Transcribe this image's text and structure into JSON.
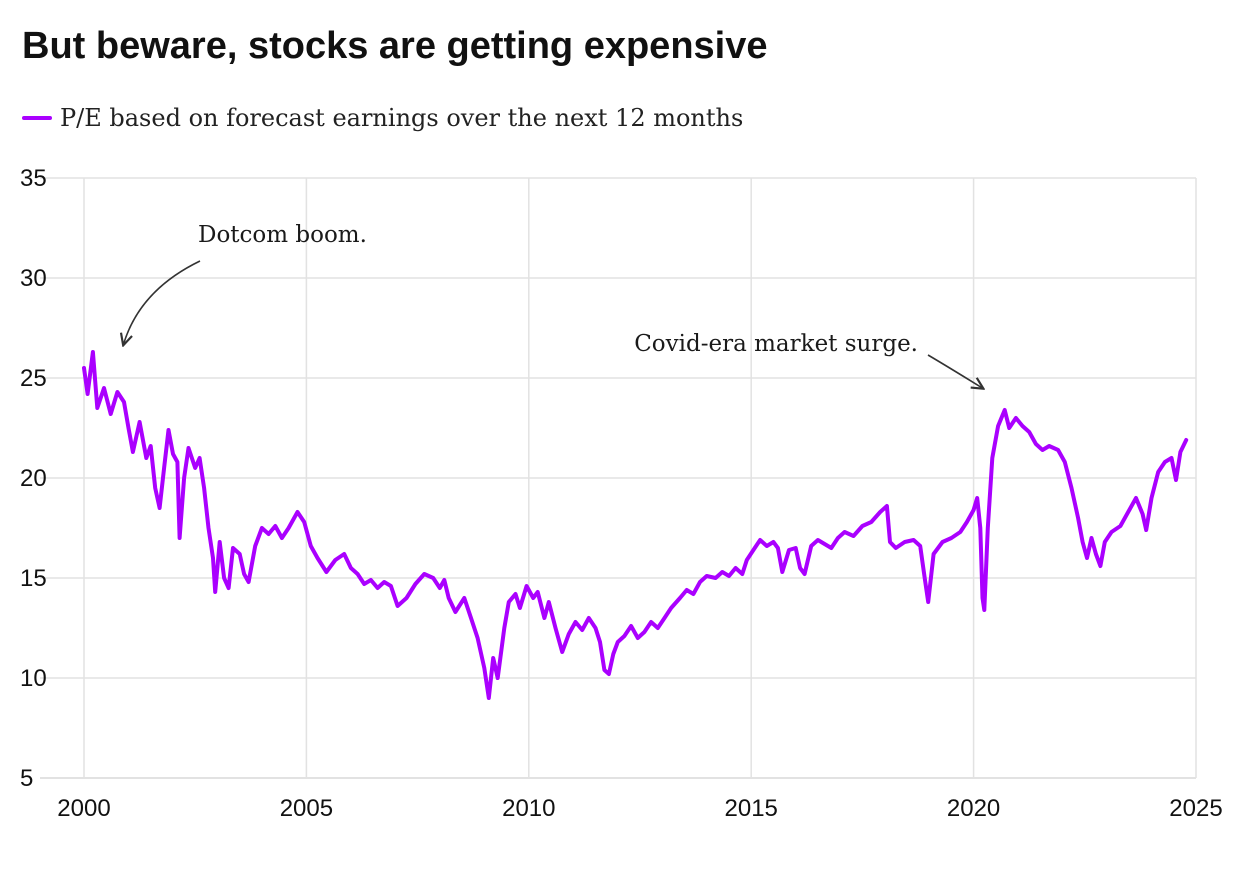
{
  "title": "But beware, stocks are getting expensive",
  "colors": {
    "series": "#aa00ff",
    "grid": "#e2e2e2",
    "annotation": "#333333",
    "text": "#111111"
  },
  "chart_data": {
    "type": "line",
    "title": "But beware, stocks are getting expensive",
    "xlabel": "",
    "ylabel": "",
    "xlim": [
      2000,
      2025
    ],
    "ylim": [
      5,
      35
    ],
    "x_ticks": [
      2000,
      2005,
      2010,
      2015,
      2020,
      2025
    ],
    "y_ticks": [
      5,
      10,
      15,
      20,
      25,
      30,
      35
    ],
    "grid": "horizontal and vertical",
    "legend": "top-left",
    "series": [
      {
        "name": "P/E based on forecast earnings over the next 12 months",
        "color": "#aa00ff",
        "points": [
          [
            2000.0,
            25.5
          ],
          [
            2000.08,
            24.2
          ],
          [
            2000.2,
            26.3
          ],
          [
            2000.3,
            23.5
          ],
          [
            2000.45,
            24.5
          ],
          [
            2000.6,
            23.2
          ],
          [
            2000.75,
            24.3
          ],
          [
            2000.9,
            23.8
          ],
          [
            2001.0,
            22.5
          ],
          [
            2001.1,
            21.3
          ],
          [
            2001.25,
            22.8
          ],
          [
            2001.4,
            21.0
          ],
          [
            2001.5,
            21.6
          ],
          [
            2001.6,
            19.5
          ],
          [
            2001.7,
            18.5
          ],
          [
            2001.8,
            20.5
          ],
          [
            2001.9,
            22.4
          ],
          [
            2002.0,
            21.2
          ],
          [
            2002.1,
            20.8
          ],
          [
            2002.15,
            17.0
          ],
          [
            2002.25,
            20.0
          ],
          [
            2002.35,
            21.5
          ],
          [
            2002.5,
            20.5
          ],
          [
            2002.6,
            21.0
          ],
          [
            2002.7,
            19.5
          ],
          [
            2002.8,
            17.5
          ],
          [
            2002.9,
            16.0
          ],
          [
            2002.95,
            14.3
          ],
          [
            2003.05,
            16.8
          ],
          [
            2003.15,
            15.0
          ],
          [
            2003.25,
            14.5
          ],
          [
            2003.35,
            16.5
          ],
          [
            2003.5,
            16.2
          ],
          [
            2003.6,
            15.2
          ],
          [
            2003.7,
            14.8
          ],
          [
            2003.85,
            16.6
          ],
          [
            2004.0,
            17.5
          ],
          [
            2004.15,
            17.2
          ],
          [
            2004.3,
            17.6
          ],
          [
            2004.45,
            17.0
          ],
          [
            2004.6,
            17.5
          ],
          [
            2004.8,
            18.3
          ],
          [
            2004.95,
            17.8
          ],
          [
            2005.1,
            16.6
          ],
          [
            2005.25,
            16.0
          ],
          [
            2005.45,
            15.3
          ],
          [
            2005.65,
            15.9
          ],
          [
            2005.85,
            16.2
          ],
          [
            2006.0,
            15.5
          ],
          [
            2006.15,
            15.2
          ],
          [
            2006.3,
            14.7
          ],
          [
            2006.45,
            14.9
          ],
          [
            2006.6,
            14.5
          ],
          [
            2006.75,
            14.8
          ],
          [
            2006.9,
            14.6
          ],
          [
            2007.05,
            13.6
          ],
          [
            2007.25,
            14.0
          ],
          [
            2007.45,
            14.7
          ],
          [
            2007.65,
            15.2
          ],
          [
            2007.85,
            15.0
          ],
          [
            2008.0,
            14.5
          ],
          [
            2008.1,
            14.9
          ],
          [
            2008.2,
            14.0
          ],
          [
            2008.35,
            13.3
          ],
          [
            2008.55,
            14.0
          ],
          [
            2008.7,
            13.0
          ],
          [
            2008.85,
            12.0
          ],
          [
            2009.0,
            10.5
          ],
          [
            2009.1,
            9.0
          ],
          [
            2009.2,
            11.0
          ],
          [
            2009.3,
            10.0
          ],
          [
            2009.45,
            12.5
          ],
          [
            2009.55,
            13.8
          ],
          [
            2009.7,
            14.2
          ],
          [
            2009.8,
            13.5
          ],
          [
            2009.95,
            14.6
          ],
          [
            2010.1,
            14.0
          ],
          [
            2010.2,
            14.3
          ],
          [
            2010.35,
            13.0
          ],
          [
            2010.45,
            13.8
          ],
          [
            2010.6,
            12.5
          ],
          [
            2010.75,
            11.3
          ],
          [
            2010.9,
            12.2
          ],
          [
            2011.05,
            12.8
          ],
          [
            2011.2,
            12.4
          ],
          [
            2011.35,
            13.0
          ],
          [
            2011.5,
            12.5
          ],
          [
            2011.6,
            11.8
          ],
          [
            2011.7,
            10.4
          ],
          [
            2011.8,
            10.2
          ],
          [
            2011.9,
            11.2
          ],
          [
            2012.0,
            11.8
          ],
          [
            2012.15,
            12.1
          ],
          [
            2012.3,
            12.6
          ],
          [
            2012.45,
            12.0
          ],
          [
            2012.6,
            12.3
          ],
          [
            2012.75,
            12.8
          ],
          [
            2012.9,
            12.5
          ],
          [
            2013.05,
            13.0
          ],
          [
            2013.2,
            13.5
          ],
          [
            2013.4,
            14.0
          ],
          [
            2013.55,
            14.4
          ],
          [
            2013.7,
            14.2
          ],
          [
            2013.85,
            14.8
          ],
          [
            2014.0,
            15.1
          ],
          [
            2014.2,
            15.0
          ],
          [
            2014.35,
            15.3
          ],
          [
            2014.5,
            15.1
          ],
          [
            2014.65,
            15.5
          ],
          [
            2014.8,
            15.2
          ],
          [
            2014.9,
            15.9
          ],
          [
            2015.05,
            16.4
          ],
          [
            2015.2,
            16.9
          ],
          [
            2015.35,
            16.6
          ],
          [
            2015.5,
            16.8
          ],
          [
            2015.6,
            16.5
          ],
          [
            2015.7,
            15.3
          ],
          [
            2015.85,
            16.4
          ],
          [
            2016.0,
            16.5
          ],
          [
            2016.1,
            15.5
          ],
          [
            2016.2,
            15.2
          ],
          [
            2016.35,
            16.6
          ],
          [
            2016.5,
            16.9
          ],
          [
            2016.65,
            16.7
          ],
          [
            2016.8,
            16.5
          ],
          [
            2016.95,
            17.0
          ],
          [
            2017.1,
            17.3
          ],
          [
            2017.3,
            17.1
          ],
          [
            2017.5,
            17.6
          ],
          [
            2017.7,
            17.8
          ],
          [
            2017.9,
            18.3
          ],
          [
            2018.05,
            18.6
          ],
          [
            2018.12,
            16.8
          ],
          [
            2018.25,
            16.5
          ],
          [
            2018.45,
            16.8
          ],
          [
            2018.65,
            16.9
          ],
          [
            2018.8,
            16.6
          ],
          [
            2018.9,
            15.0
          ],
          [
            2018.98,
            13.8
          ],
          [
            2019.1,
            16.2
          ],
          [
            2019.3,
            16.8
          ],
          [
            2019.5,
            17.0
          ],
          [
            2019.7,
            17.3
          ],
          [
            2019.85,
            17.8
          ],
          [
            2020.0,
            18.4
          ],
          [
            2020.08,
            19.0
          ],
          [
            2020.15,
            17.5
          ],
          [
            2020.2,
            14.0
          ],
          [
            2020.24,
            13.4
          ],
          [
            2020.32,
            17.5
          ],
          [
            2020.42,
            21.0
          ],
          [
            2020.55,
            22.6
          ],
          [
            2020.7,
            23.4
          ],
          [
            2020.8,
            22.5
          ],
          [
            2020.95,
            23.0
          ],
          [
            2021.1,
            22.6
          ],
          [
            2021.25,
            22.3
          ],
          [
            2021.4,
            21.7
          ],
          [
            2021.55,
            21.4
          ],
          [
            2021.7,
            21.6
          ],
          [
            2021.9,
            21.4
          ],
          [
            2022.05,
            20.8
          ],
          [
            2022.2,
            19.5
          ],
          [
            2022.35,
            18.0
          ],
          [
            2022.45,
            16.8
          ],
          [
            2022.55,
            16.0
          ],
          [
            2022.65,
            17.0
          ],
          [
            2022.75,
            16.2
          ],
          [
            2022.85,
            15.6
          ],
          [
            2022.95,
            16.8
          ],
          [
            2023.1,
            17.3
          ],
          [
            2023.3,
            17.6
          ],
          [
            2023.5,
            18.4
          ],
          [
            2023.65,
            19.0
          ],
          [
            2023.8,
            18.2
          ],
          [
            2023.88,
            17.4
          ],
          [
            2024.0,
            19.0
          ],
          [
            2024.15,
            20.3
          ],
          [
            2024.3,
            20.8
          ],
          [
            2024.45,
            21.0
          ],
          [
            2024.55,
            19.9
          ],
          [
            2024.65,
            21.3
          ],
          [
            2024.78,
            21.9
          ]
        ]
      }
    ],
    "annotations": [
      {
        "text": "Dotcom boom.",
        "x": 2000.8,
        "y": 26.5
      },
      {
        "text": "Covid-era market surge.",
        "x": 2020.15,
        "y": 24.4
      }
    ]
  }
}
